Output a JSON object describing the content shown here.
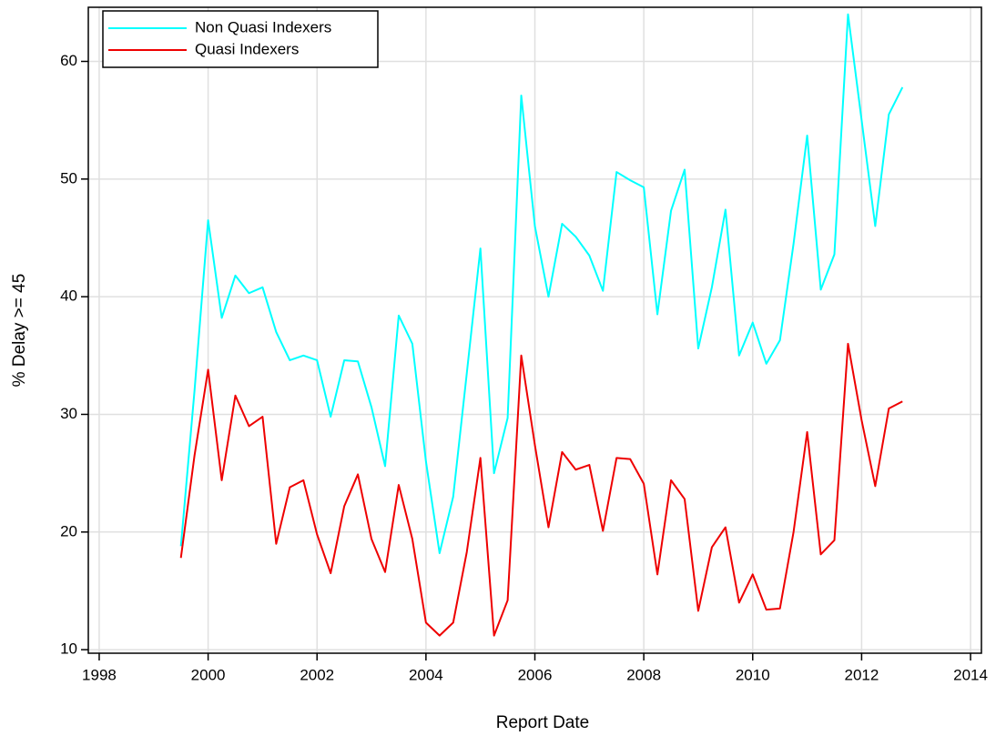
{
  "chart_data": {
    "type": "line",
    "xlabel": "Report Date",
    "ylabel": "% Delay >= 45",
    "x": [
      1999.5,
      1999.75,
      2000,
      2000.25,
      2000.5,
      2000.75,
      2001,
      2001.25,
      2001.5,
      2001.75,
      2002,
      2002.25,
      2002.5,
      2002.75,
      2003,
      2003.25,
      2003.5,
      2003.75,
      2004,
      2004.25,
      2004.5,
      2004.75,
      2005,
      2005.25,
      2005.5,
      2005.75,
      2006,
      2006.25,
      2006.5,
      2006.75,
      2007,
      2007.25,
      2007.5,
      2007.75,
      2008,
      2008.25,
      2008.5,
      2008.75,
      2009,
      2009.25,
      2009.5,
      2009.75,
      2010,
      2010.25,
      2010.5,
      2010.75,
      2011,
      2011.25,
      2011.5,
      2011.75,
      2012,
      2012.25,
      2012.5,
      2012.75
    ],
    "series": [
      {
        "name": "Non Quasi Indexers",
        "color": "#00ffff",
        "values": [
          18.8,
          32,
          46.5,
          38.2,
          41.8,
          40.3,
          40.8,
          37,
          34.6,
          35,
          34.6,
          29.8,
          34.6,
          34.5,
          30.6,
          25.6,
          38.4,
          36,
          26,
          18.2,
          23,
          33.5,
          44.1,
          25,
          29.7,
          57.1,
          46,
          40,
          46.2,
          45.1,
          43.5,
          40.5,
          50.6,
          49.9,
          49.3,
          38.5,
          47.3,
          50.8,
          35.6,
          40.8,
          47.4,
          35,
          37.8,
          34.3,
          36.3,
          44.5,
          53.7,
          40.6,
          43.6,
          64,
          55,
          46,
          55.5,
          57.8
        ]
      },
      {
        "name": "Quasi Indexers",
        "color": "#ee0000",
        "values": [
          17.8,
          26.5,
          33.8,
          24.4,
          31.6,
          29,
          29.8,
          19,
          23.8,
          24.4,
          19.8,
          16.5,
          22.2,
          24.9,
          19.4,
          16.6,
          24,
          19.4,
          12.3,
          11.2,
          12.3,
          18.3,
          26.3,
          11.2,
          14.2,
          35,
          27.4,
          20.4,
          26.8,
          25.3,
          25.7,
          20.1,
          26.3,
          26.2,
          24.1,
          16.4,
          24.4,
          22.8,
          13.3,
          18.7,
          20.4,
          14,
          16.4,
          13.4,
          13.5,
          20,
          28.5,
          18.1,
          19.3,
          36,
          29.5,
          23.9,
          30.5,
          31.1
        ]
      }
    ],
    "xlim": [
      1997.8,
      2014.2
    ],
    "xticks": [
      1998,
      2000,
      2002,
      2004,
      2006,
      2008,
      2010,
      2012,
      2014
    ],
    "ylim": [
      9.7,
      64.6
    ],
    "yticks": [
      10,
      20,
      30,
      40,
      50,
      60
    ],
    "grid": true,
    "legend": "upper left"
  }
}
